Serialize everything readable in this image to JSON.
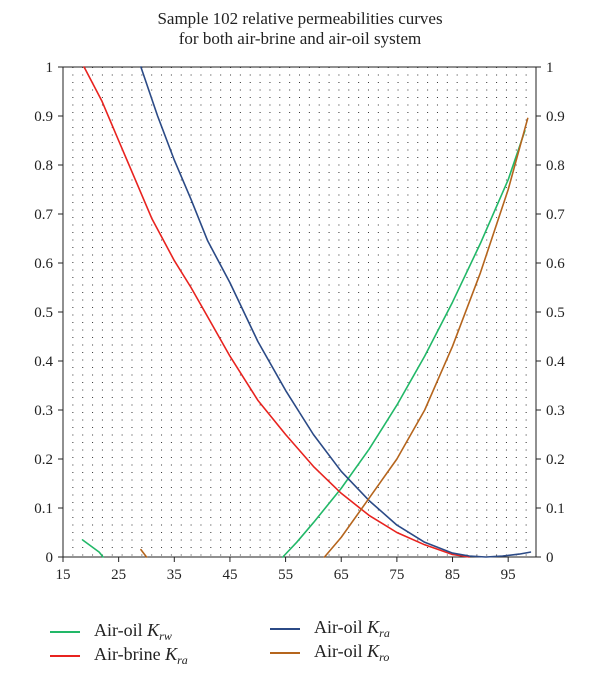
{
  "chart_data": {
    "type": "line",
    "title": [
      "Sample 102 relative permeabilities curves",
      "for both air-brine and air-oil system"
    ],
    "xlabel": "",
    "ylabel": "",
    "xlim": [
      15,
      100
    ],
    "ylim": [
      0,
      1
    ],
    "x_ticks": [
      15,
      25,
      35,
      45,
      55,
      65,
      75,
      85,
      95
    ],
    "y_ticks": [
      0,
      0.1,
      0.2,
      0.3,
      0.4,
      0.5,
      0.6,
      0.7,
      0.8,
      0.9,
      1
    ],
    "y_tick_labels": [
      "0",
      "0.1",
      "0.2",
      "0.3",
      "0.4",
      "0.5",
      "0.6",
      "0.7",
      "0.8",
      "0.9",
      "1"
    ],
    "grid": "dotted",
    "legend_position": "bottom",
    "series": [
      {
        "name": "Air-oil Krw",
        "legend_prefix": "Air-oil ",
        "legend_symbol": "K",
        "legend_sub": "rw",
        "color": "#22b868",
        "segments": [
          [
            [
              18.5,
              0.035
            ],
            [
              21.5,
              0.01
            ],
            [
              22.2,
              0.0
            ]
          ],
          [
            [
              54.5,
              0.0
            ],
            [
              57,
              0.03
            ],
            [
              60,
              0.07
            ],
            [
              65,
              0.14
            ],
            [
              70,
              0.22
            ],
            [
              75,
              0.31
            ],
            [
              80,
              0.41
            ],
            [
              85,
              0.52
            ],
            [
              90,
              0.64
            ],
            [
              95,
              0.77
            ],
            [
              98,
              0.87
            ]
          ]
        ]
      },
      {
        "name": "Air-brine Kra",
        "legend_prefix": "Air-brine ",
        "legend_symbol": "K",
        "legend_sub": "ra",
        "color": "#e8231f",
        "segments": [
          [
            [
              18.8,
              1.0
            ],
            [
              22,
              0.93
            ],
            [
              25,
              0.85
            ],
            [
              28,
              0.77
            ],
            [
              31,
              0.69
            ],
            [
              35,
              0.605
            ],
            [
              38,
              0.55
            ],
            [
              41,
              0.49
            ],
            [
              45,
              0.41
            ],
            [
              50,
              0.32
            ],
            [
              55,
              0.25
            ],
            [
              60,
              0.185
            ],
            [
              65,
              0.13
            ],
            [
              70,
              0.085
            ],
            [
              75,
              0.05
            ],
            [
              80,
              0.025
            ],
            [
              85,
              0.005
            ],
            [
              88,
              0.0
            ]
          ]
        ]
      },
      {
        "name": "Air-oil Kra",
        "legend_prefix": "Air-oil ",
        "legend_symbol": "K",
        "legend_sub": "ra",
        "color": "#2b4a86",
        "segments": [
          [
            [
              29,
              1.0
            ],
            [
              32,
              0.9
            ],
            [
              35,
              0.81
            ],
            [
              38,
              0.73
            ],
            [
              41,
              0.645
            ],
            [
              45,
              0.56
            ],
            [
              50,
              0.44
            ],
            [
              55,
              0.34
            ],
            [
              60,
              0.25
            ],
            [
              65,
              0.175
            ],
            [
              70,
              0.115
            ],
            [
              75,
              0.065
            ],
            [
              80,
              0.03
            ],
            [
              85,
              0.008
            ],
            [
              88,
              0.002
            ],
            [
              91,
              0.0
            ],
            [
              94,
              0.002
            ],
            [
              97,
              0.006
            ],
            [
              99,
              0.01
            ]
          ]
        ]
      },
      {
        "name": "Air-oil Kro",
        "legend_prefix": "Air-oil ",
        "legend_symbol": "K",
        "legend_sub": "ro",
        "color": "#b5651d",
        "segments": [
          [
            [
              29,
              0.015
            ],
            [
              30,
              0.0
            ]
          ],
          [
            [
              62,
              0.0
            ],
            [
              65,
              0.04
            ],
            [
              70,
              0.12
            ],
            [
              75,
              0.2
            ],
            [
              80,
              0.3
            ],
            [
              85,
              0.43
            ],
            [
              90,
              0.58
            ],
            [
              95,
              0.75
            ],
            [
              98.5,
              0.895
            ]
          ]
        ]
      }
    ]
  }
}
